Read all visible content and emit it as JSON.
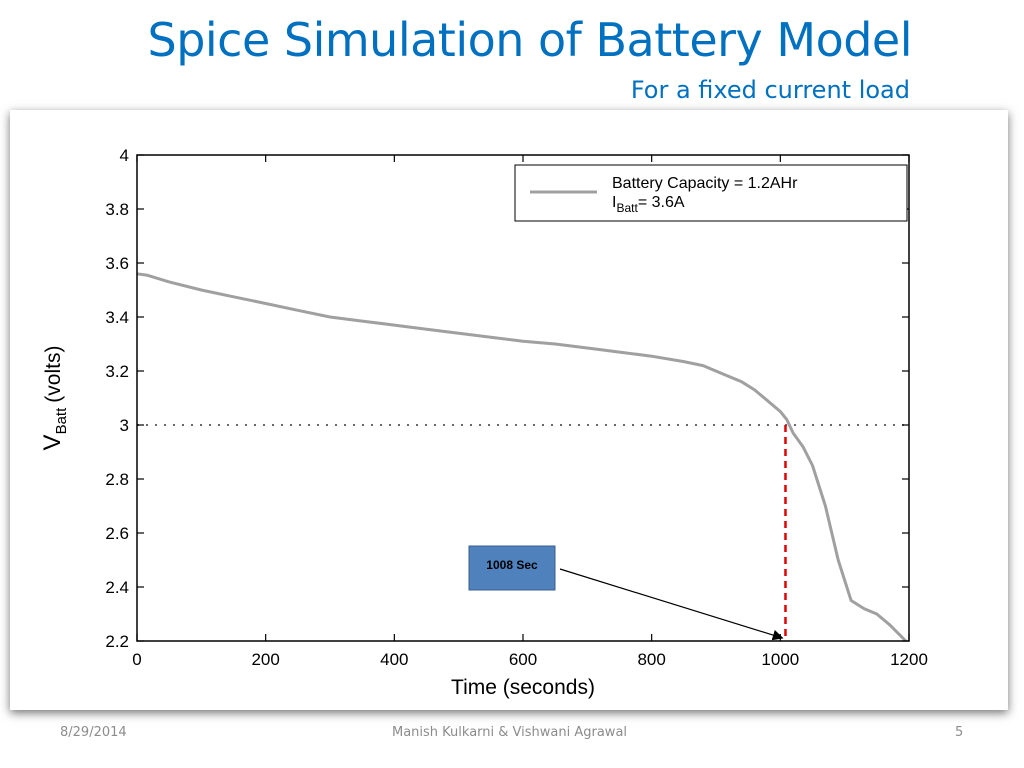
{
  "slide": {
    "title": "Spice Simulation of Battery Model",
    "subtitle": "For a fixed current load"
  },
  "footer": {
    "date": "8/29/2014",
    "authors": "Manish Kulkarni & Vishwani Agrawal",
    "page_number": "5"
  },
  "colors": {
    "title": "#0070c0",
    "curve": "#a0a0a0",
    "marker": "#e00000",
    "callout_fill": "#4f81bd"
  },
  "chart_data": {
    "type": "line",
    "xlabel": "Time (seconds)",
    "ylabel_main": "V",
    "ylabel_sub": "Batt",
    "ylabel_unit": "(volts)",
    "xlim": [
      0,
      1200
    ],
    "ylim": [
      2.2,
      4
    ],
    "x_ticks": [
      0,
      200,
      400,
      600,
      800,
      1000,
      1200
    ],
    "x_tick_labels": [
      "0",
      "200",
      "400",
      "600",
      "800",
      "1000",
      "1200"
    ],
    "y_ticks": [
      2.2,
      2.4,
      2.6,
      2.8,
      3,
      3.2,
      3.4,
      3.6,
      3.8,
      4
    ],
    "y_tick_labels": [
      "2.2",
      "2.4",
      "2.6",
      "2.8",
      "3",
      "3.2",
      "3.4",
      "3.6",
      "3.8",
      "4"
    ],
    "grid": false,
    "legend_position": "top-right",
    "legend": {
      "line1": "Battery Capacity = 1.2AHr",
      "line2_main": "I",
      "line2_sub": "Batt",
      "line2_rest": "= 3.6A"
    },
    "series": [
      {
        "x": [
          0,
          15,
          50,
          100,
          150,
          200,
          250,
          300,
          350,
          400,
          450,
          500,
          550,
          600,
          650,
          700,
          750,
          800,
          850,
          880,
          910,
          940,
          960,
          980,
          1000,
          1010,
          1020,
          1035,
          1050,
          1070,
          1090,
          1110,
          1130,
          1150,
          1170,
          1195
        ],
        "y": [
          3.56,
          3.555,
          3.53,
          3.5,
          3.475,
          3.45,
          3.425,
          3.4,
          3.385,
          3.37,
          3.355,
          3.34,
          3.325,
          3.31,
          3.3,
          3.285,
          3.27,
          3.255,
          3.235,
          3.22,
          3.19,
          3.16,
          3.13,
          3.09,
          3.05,
          3.02,
          2.97,
          2.92,
          2.85,
          2.7,
          2.5,
          2.35,
          2.32,
          2.3,
          2.26,
          2.2
        ]
      }
    ],
    "reference_line": {
      "y": 3,
      "style": "dotted"
    },
    "marker_line": {
      "x": 1008,
      "y_from": 2.2,
      "y_to": 3,
      "style": "dashed"
    },
    "annotation": {
      "text": "1008 Sec",
      "points_to_x": 1008,
      "points_to_y": 2.2
    }
  }
}
